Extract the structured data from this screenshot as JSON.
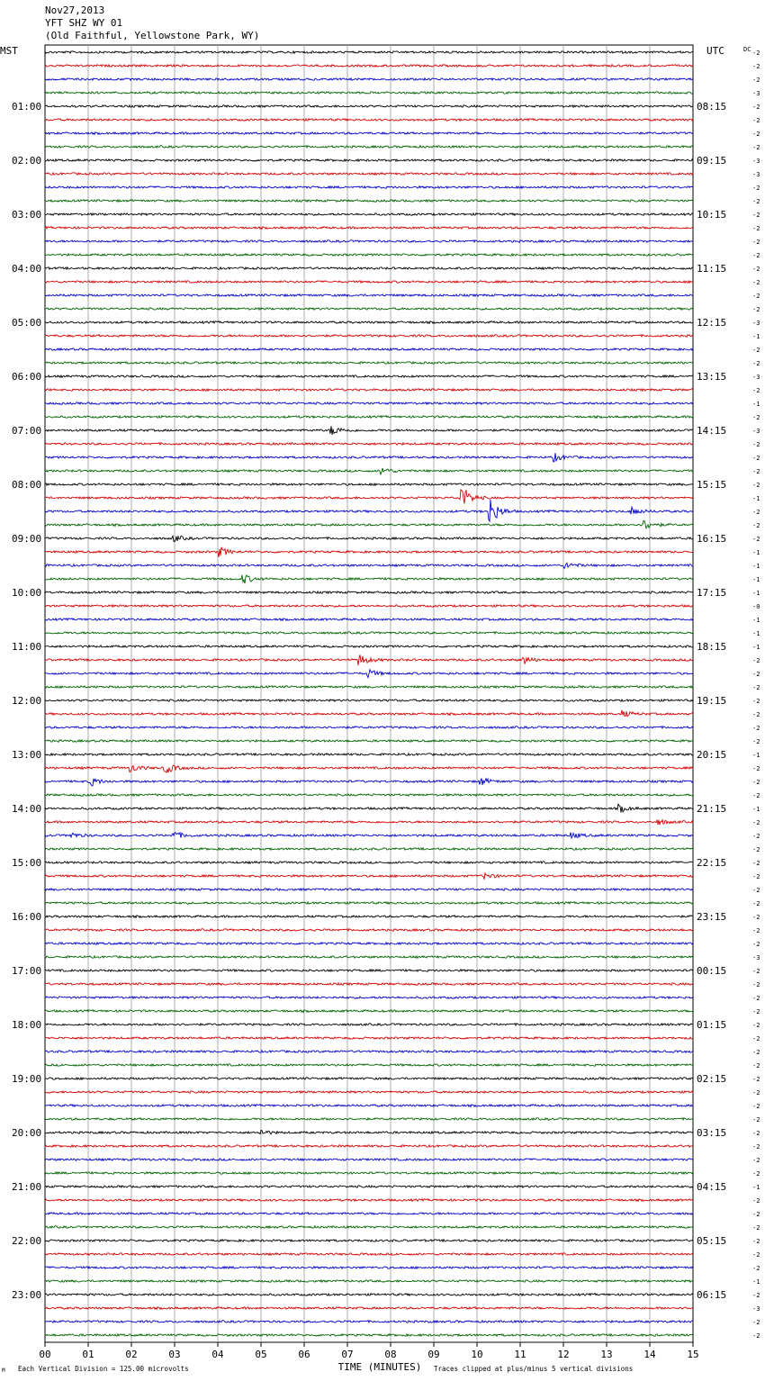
{
  "header": {
    "date": "Nov27,2013",
    "station": "YFT SHZ WY 01",
    "location": "(Old Faithful, Yellowstone Park, WY)"
  },
  "footer": {
    "scale_note": "Each Vertical Division =  125.00 microvolts",
    "clip_note": "Traces clipped at plus/minus 5 vertical divisions",
    "corner_mark": "M"
  },
  "chart_data": {
    "type": "line",
    "title": "",
    "xlabel": "TIME (MINUTES)",
    "x_ticks": [
      "00",
      "01",
      "02",
      "03",
      "04",
      "05",
      "06",
      "07",
      "08",
      "09",
      "10",
      "11",
      "12",
      "13",
      "14",
      "15"
    ],
    "xlim": [
      0,
      15
    ],
    "left_axis_label": "MST",
    "right_axis_label": "UTC",
    "right_header_label": "DC",
    "left_hour_labels": [
      "",
      "01:00",
      "02:00",
      "03:00",
      "04:00",
      "05:00",
      "06:00",
      "07:00",
      "08:00",
      "09:00",
      "10:00",
      "11:00",
      "12:00",
      "13:00",
      "14:00",
      "15:00",
      "16:00",
      "17:00",
      "18:00",
      "19:00",
      "20:00",
      "21:00",
      "22:00",
      "23:00"
    ],
    "right_hour_labels": [
      "",
      "08:15",
      "09:15",
      "10:15",
      "11:15",
      "12:15",
      "13:15",
      "14:15",
      "15:15",
      "16:15",
      "17:15",
      "18:15",
      "19:15",
      "20:15",
      "21:15",
      "22:15",
      "23:15",
      "00:15",
      "01:15",
      "02:15",
      "03:15",
      "04:15",
      "05:15",
      "06:15"
    ],
    "series_colors": [
      "#000000",
      "#d40000",
      "#0000c8",
      "#006400"
    ],
    "dc_offsets": [
      "-2",
      "-2",
      "-2",
      "-3",
      "-2",
      "-2",
      "-2",
      "-2",
      "-3",
      "-3",
      "-2",
      "-2",
      "-2",
      "-2",
      "-2",
      "-2",
      "-2",
      "-2",
      "-2",
      "-2",
      "-3",
      "-1",
      "-2",
      "-2",
      "-3",
      "-2",
      "-1",
      "-2",
      "-3",
      "-2",
      "-2",
      "-2",
      "-2",
      "-1",
      "-2",
      "-2",
      "-2",
      "-1",
      "-1",
      "-1",
      "-1",
      "-0",
      "-1",
      "-1",
      "-1",
      "-2",
      "-2",
      "-2",
      "-2",
      "-2",
      "-2",
      "-2",
      "-1",
      "-2",
      "-2",
      "-2",
      "-1",
      "-2",
      "-2",
      "-2",
      "-2",
      "-2",
      "-2",
      "-2",
      "-2",
      "-2",
      "-2",
      "-3",
      "-2",
      "-2",
      "-2",
      "-2",
      "-2",
      "-2",
      "-2",
      "-2",
      "-2",
      "-2",
      "-2",
      "-2",
      "-2",
      "-2",
      "-2",
      "-2",
      "-1",
      "-2",
      "-2",
      "-2",
      "-2",
      "-2",
      "-2",
      "-1",
      "-2",
      "-3",
      "-2",
      "-2"
    ],
    "events": [
      {
        "trace": 28,
        "minute": 6.65,
        "amp": 5
      },
      {
        "trace": 30,
        "minute": 11.8,
        "amp": 4
      },
      {
        "trace": 31,
        "minute": 7.8,
        "amp": 4
      },
      {
        "trace": 33,
        "minute": 9.65,
        "amp": 13
      },
      {
        "trace": 34,
        "minute": 10.3,
        "amp": 16
      },
      {
        "trace": 34,
        "minute": 13.6,
        "amp": 4
      },
      {
        "trace": 35,
        "minute": 13.9,
        "amp": 5
      },
      {
        "trace": 36,
        "minute": 3.0,
        "amp": 3
      },
      {
        "trace": 37,
        "minute": 4.05,
        "amp": 5
      },
      {
        "trace": 38,
        "minute": 12.05,
        "amp": 4
      },
      {
        "trace": 39,
        "minute": 4.6,
        "amp": 5
      },
      {
        "trace": 45,
        "minute": 7.3,
        "amp": 6
      },
      {
        "trace": 45,
        "minute": 11.1,
        "amp": 4
      },
      {
        "trace": 46,
        "minute": 7.5,
        "amp": 4
      },
      {
        "trace": 49,
        "minute": 13.4,
        "amp": 3
      },
      {
        "trace": 53,
        "minute": 2.8,
        "amp": 6
      },
      {
        "trace": 53,
        "minute": 2.0,
        "amp": 4
      },
      {
        "trace": 54,
        "minute": 1.05,
        "amp": 5
      },
      {
        "trace": 54,
        "minute": 10.1,
        "amp": 4
      },
      {
        "trace": 56,
        "minute": 13.3,
        "amp": 4
      },
      {
        "trace": 57,
        "minute": 14.2,
        "amp": 3
      },
      {
        "trace": 58,
        "minute": 0.6,
        "amp": 3
      },
      {
        "trace": 58,
        "minute": 3.0,
        "amp": 4
      },
      {
        "trace": 58,
        "minute": 12.2,
        "amp": 3
      },
      {
        "trace": 61,
        "minute": 10.2,
        "amp": 3
      },
      {
        "trace": 80,
        "minute": 5.0,
        "amp": 3
      }
    ]
  }
}
